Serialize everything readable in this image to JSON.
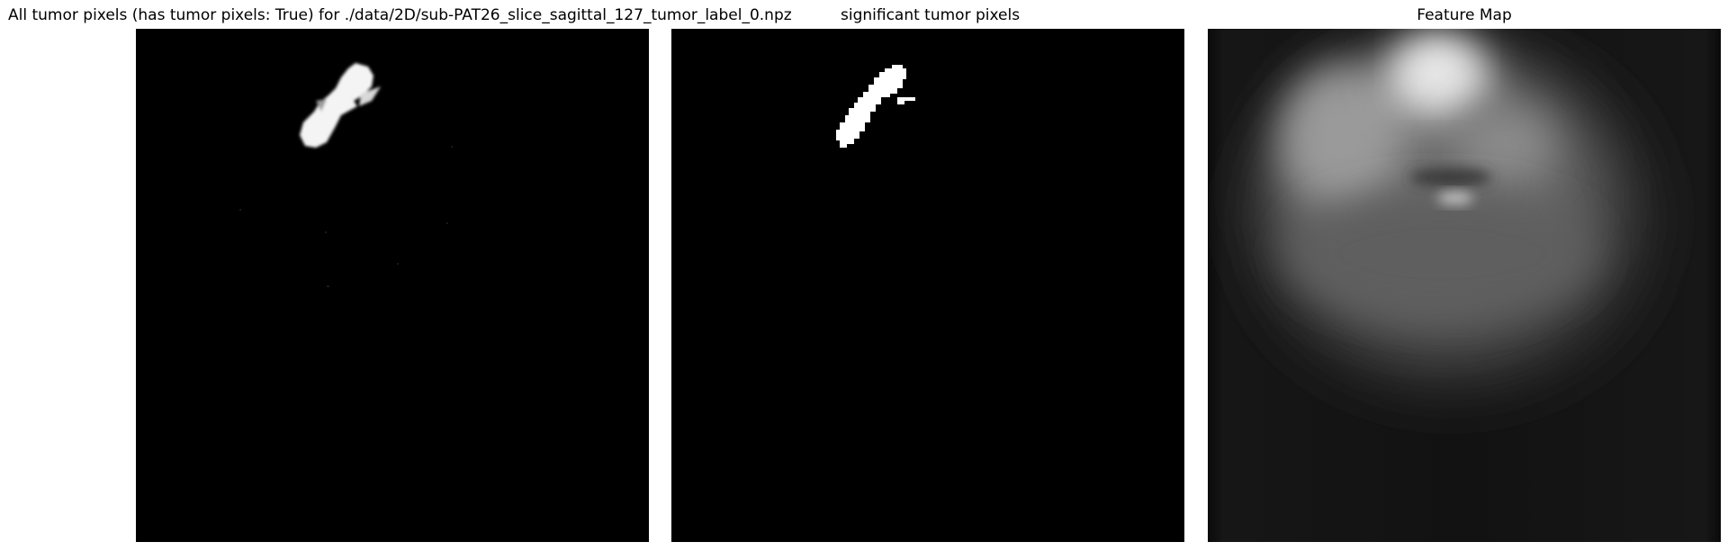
{
  "panels": [
    {
      "title": "All tumor pixels (has tumor pixels: True) for ./data/2D/sub-PAT26_slice_sagittal_127_tumor_label_0.npz"
    },
    {
      "title": "significant tumor pixels"
    },
    {
      "title": "Feature Map"
    }
  ],
  "colors": {
    "background": "#ffffff",
    "image_black": "#000000",
    "tumor_white": "#ffffff"
  }
}
